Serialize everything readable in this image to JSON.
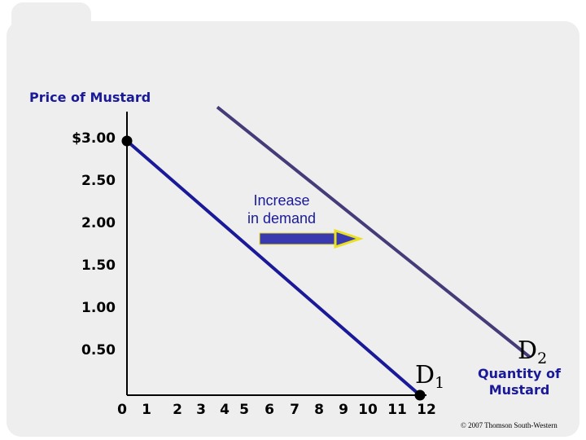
{
  "chart_data": {
    "type": "line",
    "ylabel": "Price of Mustard",
    "xlabel": "Quantity of Mustard",
    "y_ticks": [
      "$3.00",
      "2.50",
      "2.00",
      "1.50",
      "1.00",
      "0.50"
    ],
    "y_tick_values": [
      3.0,
      2.5,
      2.0,
      1.5,
      1.0,
      0.5
    ],
    "x_ticks": [
      "0",
      "1",
      "2",
      "3",
      "4",
      "5",
      "6",
      "7",
      "8",
      "9",
      "10",
      "11",
      "12"
    ],
    "xlim": [
      0,
      12
    ],
    "ylim": [
      0,
      3.0
    ],
    "series": [
      {
        "name": "D",
        "subscript": "1",
        "points": [
          {
            "x": 0,
            "y": 3.0
          },
          {
            "x": 12,
            "y": 0
          }
        ],
        "markers": [
          {
            "x": 0,
            "y": 3.0
          },
          {
            "x": 12,
            "y": 0
          }
        ],
        "color": "#1a1a99"
      },
      {
        "name": "D",
        "subscript": "2",
        "points": [
          {
            "x": 3.7,
            "y": 3.4
          },
          {
            "x": 16.5,
            "y": 0.45
          }
        ],
        "markers": [],
        "color": "#443c78"
      }
    ],
    "annotation": {
      "line1": "Increase",
      "line2": "in demand"
    },
    "colors": {
      "axis": "#000000",
      "text": "#1a1a99",
      "arrow_fill": "#3a3ab0",
      "arrow_head": "#e8e020"
    }
  },
  "footer": {
    "copyright": "© 2007 Thomson South-Western"
  }
}
